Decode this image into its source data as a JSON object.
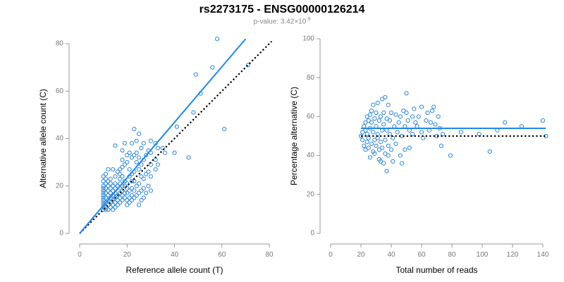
{
  "title": "rs2273175 - ENSG00000126214",
  "pvalue": {
    "prefix": "p-value: ",
    "mantissa": "3.42",
    "times": "×10",
    "exponent": "-9"
  },
  "colors": {
    "point": "#2e86d6",
    "fit_line": "#1f88e5",
    "reference_line": "#000000",
    "axis": "#999999"
  },
  "chart_data": [
    {
      "type": "scatter",
      "xlabel": "Reference allele count (T)",
      "ylabel": "Alternative allele count (C)",
      "xlim": [
        0,
        80
      ],
      "ylim": [
        0,
        80
      ],
      "xticks": [
        0,
        20,
        40,
        60,
        80
      ],
      "yticks": [
        0,
        20,
        40,
        60,
        80
      ],
      "grid": false,
      "fit_line": [
        [
          0,
          0
        ],
        [
          70,
          82
        ]
      ],
      "reference_line": [
        [
          0,
          0
        ],
        [
          81,
          81
        ]
      ],
      "points": [
        [
          10,
          10
        ],
        [
          10,
          11
        ],
        [
          10,
          12
        ],
        [
          10,
          13
        ],
        [
          10,
          14
        ],
        [
          10,
          15
        ],
        [
          10,
          16
        ],
        [
          10,
          17
        ],
        [
          10,
          18
        ],
        [
          10,
          19
        ],
        [
          10,
          20
        ],
        [
          10,
          22
        ],
        [
          10,
          24
        ],
        [
          11,
          10
        ],
        [
          11,
          11
        ],
        [
          11,
          13
        ],
        [
          11,
          15
        ],
        [
          11,
          17
        ],
        [
          11,
          19
        ],
        [
          11,
          21
        ],
        [
          11,
          23
        ],
        [
          11,
          25
        ],
        [
          12,
          10
        ],
        [
          12,
          12
        ],
        [
          12,
          14
        ],
        [
          12,
          16
        ],
        [
          12,
          18
        ],
        [
          12,
          20
        ],
        [
          12,
          22
        ],
        [
          12,
          27
        ],
        [
          13,
          11
        ],
        [
          13,
          13
        ],
        [
          13,
          15
        ],
        [
          13,
          17
        ],
        [
          13,
          19
        ],
        [
          13,
          21
        ],
        [
          13,
          23
        ],
        [
          14,
          10
        ],
        [
          14,
          12
        ],
        [
          14,
          14
        ],
        [
          14,
          16
        ],
        [
          14,
          18
        ],
        [
          14,
          20
        ],
        [
          14,
          27
        ],
        [
          15,
          11
        ],
        [
          15,
          13
        ],
        [
          15,
          15
        ],
        [
          15,
          17
        ],
        [
          15,
          19
        ],
        [
          15,
          21
        ],
        [
          15,
          24
        ],
        [
          15,
          37
        ],
        [
          16,
          12
        ],
        [
          16,
          14
        ],
        [
          16,
          16
        ],
        [
          16,
          20
        ],
        [
          16,
          26
        ],
        [
          17,
          13
        ],
        [
          17,
          15
        ],
        [
          17,
          17
        ],
        [
          17,
          19
        ],
        [
          17,
          21
        ],
        [
          17,
          23
        ],
        [
          17,
          25
        ],
        [
          17,
          27
        ],
        [
          18,
          14
        ],
        [
          18,
          16
        ],
        [
          18,
          18
        ],
        [
          18,
          20
        ],
        [
          18,
          24
        ],
        [
          18,
          28
        ],
        [
          18,
          31
        ],
        [
          18,
          35
        ],
        [
          19,
          15
        ],
        [
          19,
          17
        ],
        [
          19,
          20
        ],
        [
          19,
          22
        ],
        [
          19,
          29
        ],
        [
          19,
          38
        ],
        [
          20,
          12
        ],
        [
          20,
          14
        ],
        [
          20,
          17
        ],
        [
          20,
          19
        ],
        [
          20,
          21
        ],
        [
          20,
          30
        ],
        [
          20,
          33
        ],
        [
          21,
          13
        ],
        [
          21,
          15
        ],
        [
          21,
          18
        ],
        [
          21,
          24
        ],
        [
          21,
          27
        ],
        [
          21,
          34
        ],
        [
          22,
          14
        ],
        [
          22,
          16
        ],
        [
          22,
          19
        ],
        [
          22,
          22
        ],
        [
          22,
          25
        ],
        [
          22,
          32
        ],
        [
          22,
          38
        ],
        [
          23,
          15
        ],
        [
          23,
          18
        ],
        [
          23,
          22
        ],
        [
          23,
          26
        ],
        [
          23,
          33
        ],
        [
          23,
          44
        ],
        [
          24,
          16
        ],
        [
          24,
          20
        ],
        [
          24,
          30
        ],
        [
          24,
          34
        ],
        [
          24,
          39
        ],
        [
          25,
          12
        ],
        [
          25,
          17
        ],
        [
          25,
          21
        ],
        [
          25,
          27
        ],
        [
          25,
          32
        ],
        [
          25,
          42
        ],
        [
          26,
          14
        ],
        [
          26,
          18
        ],
        [
          26,
          24
        ],
        [
          26,
          29
        ],
        [
          26,
          36
        ],
        [
          27,
          15
        ],
        [
          27,
          19
        ],
        [
          27,
          23
        ],
        [
          27,
          31
        ],
        [
          27,
          38
        ],
        [
          28,
          17
        ],
        [
          28,
          25
        ],
        [
          28,
          33
        ],
        [
          29,
          20
        ],
        [
          29,
          26
        ],
        [
          29,
          35
        ],
        [
          30,
          18
        ],
        [
          30,
          24
        ],
        [
          30,
          29
        ],
        [
          30,
          34
        ],
        [
          30,
          39
        ],
        [
          32,
          27
        ],
        [
          32,
          31
        ],
        [
          32,
          38
        ],
        [
          33,
          29
        ],
        [
          33,
          36
        ],
        [
          35,
          36
        ],
        [
          36,
          34
        ],
        [
          40,
          34
        ],
        [
          41,
          45
        ],
        [
          46,
          32
        ],
        [
          48,
          51
        ],
        [
          49,
          67
        ],
        [
          51,
          59
        ],
        [
          56,
          70
        ],
        [
          58,
          82
        ],
        [
          61,
          44
        ],
        [
          71,
          71
        ]
      ]
    },
    {
      "type": "scatter",
      "xlabel": "Total number of reads",
      "ylabel": "Percentage alternative (C)",
      "xlim": [
        0,
        140
      ],
      "ylim": [
        0,
        100
      ],
      "xticks": [
        0,
        20,
        40,
        60,
        80,
        100,
        120,
        140
      ],
      "yticks": [
        0,
        20,
        40,
        60,
        80,
        100
      ],
      "grid": false,
      "fit_line": [
        [
          20,
          54
        ],
        [
          142,
          54
        ]
      ],
      "reference_line": [
        [
          20,
          50
        ],
        [
          142,
          50
        ]
      ],
      "points": [
        [
          20,
          50
        ],
        [
          21,
          52
        ],
        [
          21,
          48
        ],
        [
          22,
          55
        ],
        [
          22,
          45
        ],
        [
          23,
          57
        ],
        [
          23,
          43
        ],
        [
          23,
          53
        ],
        [
          24,
          47
        ],
        [
          24,
          60
        ],
        [
          24,
          51
        ],
        [
          25,
          58
        ],
        [
          25,
          44
        ],
        [
          25,
          49
        ],
        [
          26,
          61
        ],
        [
          26,
          39
        ],
        [
          26,
          54
        ],
        [
          27,
          46
        ],
        [
          27,
          63
        ],
        [
          27,
          57
        ],
        [
          28,
          42
        ],
        [
          28,
          52
        ],
        [
          28,
          66
        ],
        [
          29,
          48
        ],
        [
          29,
          59
        ],
        [
          29,
          41
        ],
        [
          30,
          55
        ],
        [
          30,
          45
        ],
        [
          30,
          62
        ],
        [
          31,
          51
        ],
        [
          31,
          49
        ],
        [
          31,
          67
        ],
        [
          32,
          58
        ],
        [
          32,
          43
        ],
        [
          32,
          38
        ],
        [
          33,
          37
        ],
        [
          33,
          60
        ],
        [
          33,
          47
        ],
        [
          34,
          69
        ],
        [
          34,
          53
        ],
        [
          34,
          44
        ],
        [
          35,
          62
        ],
        [
          35,
          36
        ],
        [
          35,
          56
        ],
        [
          36,
          70
        ],
        [
          36,
          48
        ],
        [
          36,
          41
        ],
        [
          37,
          32
        ],
        [
          37,
          59
        ],
        [
          37,
          53
        ],
        [
          38,
          45
        ],
        [
          38,
          66
        ],
        [
          38,
          40
        ],
        [
          39,
          51
        ],
        [
          39,
          58
        ],
        [
          40,
          62
        ],
        [
          40,
          43
        ],
        [
          41,
          49
        ],
        [
          41,
          37
        ],
        [
          42,
          55
        ],
        [
          43,
          61
        ],
        [
          43,
          46
        ],
        [
          44,
          52
        ],
        [
          45,
          57
        ],
        [
          46,
          40
        ],
        [
          46,
          60
        ],
        [
          47,
          36
        ],
        [
          47,
          50
        ],
        [
          48,
          63
        ],
        [
          49,
          55
        ],
        [
          49,
          43
        ],
        [
          50,
          72
        ],
        [
          50,
          62
        ],
        [
          51,
          58
        ],
        [
          52,
          44
        ],
        [
          52,
          53
        ],
        [
          54,
          60
        ],
        [
          54,
          51
        ],
        [
          55,
          64
        ],
        [
          56,
          57
        ],
        [
          57,
          55
        ],
        [
          58,
          60
        ],
        [
          60,
          65
        ],
        [
          60,
          52
        ],
        [
          61,
          49
        ],
        [
          63,
          58
        ],
        [
          64,
          62
        ],
        [
          65,
          53
        ],
        [
          66,
          57
        ],
        [
          67,
          63
        ],
        [
          68,
          65
        ],
        [
          69,
          56
        ],
        [
          70,
          50
        ],
        [
          71,
          60
        ],
        [
          72,
          54
        ],
        [
          73,
          45
        ],
        [
          74,
          51
        ],
        [
          79,
          40
        ],
        [
          86,
          52
        ],
        [
          98,
          51
        ],
        [
          105,
          42
        ],
        [
          110,
          53
        ],
        [
          115,
          57
        ],
        [
          126,
          55
        ],
        [
          140,
          58
        ],
        [
          142,
          50
        ]
      ]
    }
  ]
}
